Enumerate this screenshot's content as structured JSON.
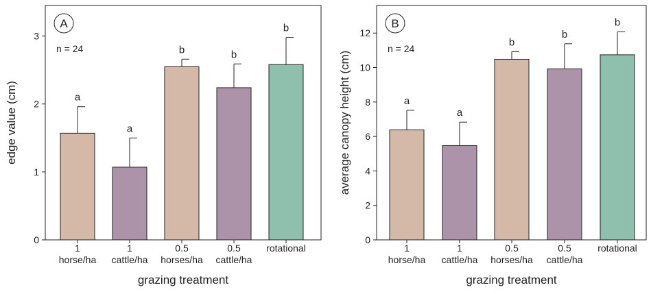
{
  "chart_data": [
    {
      "type": "bar",
      "panel_label": "A",
      "n_label": "n = 24",
      "xlabel": "grazing treatment",
      "ylabel": "edge value (cm)",
      "ylim": [
        0,
        3.45
      ],
      "yticks": [
        "0",
        "1",
        "2",
        "3"
      ],
      "categories": [
        [
          "1",
          "horse/ha"
        ],
        [
          "1",
          "cattle/ha"
        ],
        [
          "0.5",
          "horses/ha"
        ],
        [
          "0.5",
          "cattle/ha"
        ],
        [
          "rotational"
        ]
      ],
      "values": [
        1.57,
        1.07,
        2.55,
        2.24,
        2.58
      ],
      "errors": [
        0.39,
        0.43,
        0.11,
        0.35,
        0.4
      ],
      "significance": [
        "a",
        "a",
        "b",
        "b",
        "b"
      ],
      "colors": [
        "#d4b9a9",
        "#ad93a9",
        "#d4b9a9",
        "#ad93a9",
        "#8fbfad"
      ]
    },
    {
      "type": "bar",
      "panel_label": "B",
      "n_label": "n = 24",
      "xlabel": "grazing treatment",
      "ylabel": "average canopy height (cm)",
      "ylim": [
        0,
        13.6
      ],
      "yticks": [
        "0",
        "2",
        "4",
        "6",
        "8",
        "10",
        "12"
      ],
      "categories": [
        [
          "1",
          "horse/ha"
        ],
        [
          "1",
          "cattle/ha"
        ],
        [
          "0.5",
          "horses/ha"
        ],
        [
          "0.5",
          "cattle/ha"
        ],
        [
          "rotational"
        ]
      ],
      "values": [
        6.38,
        5.47,
        10.48,
        9.92,
        10.74
      ],
      "errors": [
        1.14,
        1.36,
        0.44,
        1.46,
        1.33
      ],
      "significance": [
        "a",
        "a",
        "b",
        "b",
        "b"
      ],
      "colors": [
        "#d4b9a9",
        "#ad93a9",
        "#d4b9a9",
        "#ad93a9",
        "#8fbfad"
      ]
    }
  ]
}
